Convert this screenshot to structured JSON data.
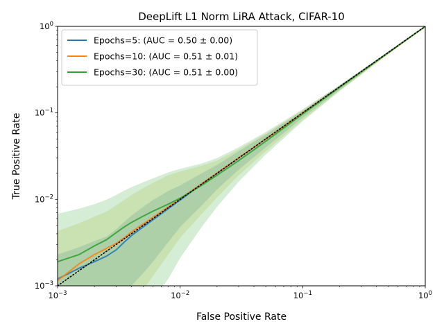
{
  "chart_data": {
    "type": "line",
    "title": "DeepLift L1 Norm LiRA Attack, CIFAR-10",
    "xlabel": "False Positive Rate",
    "ylabel": "True Positive Rate",
    "xscale": "log",
    "yscale": "log",
    "xlim": [
      0.001,
      1
    ],
    "ylim": [
      0.001,
      1
    ],
    "grid": false,
    "legend_position": "top-left",
    "x_ticks": [
      {
        "value": 0.001,
        "base": "10",
        "exp": "−3"
      },
      {
        "value": 0.01,
        "base": "10",
        "exp": "−2"
      },
      {
        "value": 0.1,
        "base": "10",
        "exp": "−1"
      },
      {
        "value": 1,
        "base": "10",
        "exp": "0"
      }
    ],
    "y_ticks": [
      {
        "value": 0.001,
        "base": "10",
        "exp": "−3"
      },
      {
        "value": 0.01,
        "base": "10",
        "exp": "−2"
      },
      {
        "value": 0.1,
        "base": "10",
        "exp": "−1"
      },
      {
        "value": 1,
        "base": "10",
        "exp": "0"
      }
    ],
    "reference_line": {
      "style": "dotted",
      "color": "#000000",
      "x": [
        0.001,
        1
      ],
      "y": [
        0.001,
        1
      ]
    },
    "series": [
      {
        "name": "Epochs=5: (AUC = 0.50 ± 0.00)",
        "color": "#1f77b4",
        "fill_color": "#1f77b4",
        "x": [
          0.001,
          0.0015,
          0.002,
          0.0025,
          0.003,
          0.0035,
          0.004,
          0.005,
          0.006,
          0.008,
          0.01,
          0.015,
          0.02,
          0.03,
          0.05,
          0.1,
          0.2,
          0.5,
          1
        ],
        "y": [
          0.0012,
          0.0016,
          0.0019,
          0.0022,
          0.0026,
          0.0032,
          0.0038,
          0.0048,
          0.0058,
          0.0078,
          0.0098,
          0.015,
          0.02,
          0.03,
          0.05,
          0.1,
          0.2,
          0.5,
          1
        ],
        "lower": [
          0.0004,
          0.0005,
          0.0006,
          0.0007,
          0.0008,
          0.0009,
          0.001,
          0.0014,
          0.0019,
          0.0032,
          0.0048,
          0.0085,
          0.013,
          0.022,
          0.04,
          0.088,
          0.185,
          0.485,
          1
        ],
        "upper": [
          0.0023,
          0.0028,
          0.0033,
          0.0037,
          0.0045,
          0.0055,
          0.0065,
          0.0082,
          0.0098,
          0.0125,
          0.0145,
          0.02,
          0.025,
          0.036,
          0.056,
          0.105,
          0.205,
          0.505,
          1
        ]
      },
      {
        "name": "Epochs=10: (AUC = 0.51 ± 0.01)",
        "color": "#ff7f0e",
        "fill_color": "#bcbd22",
        "x": [
          0.001,
          0.0015,
          0.002,
          0.0025,
          0.003,
          0.0035,
          0.004,
          0.005,
          0.006,
          0.008,
          0.01,
          0.015,
          0.02,
          0.03,
          0.05,
          0.1,
          0.2,
          0.5,
          1
        ],
        "y": [
          0.00115,
          0.0018,
          0.0023,
          0.0027,
          0.0031,
          0.0036,
          0.0042,
          0.0052,
          0.0062,
          0.0082,
          0.0102,
          0.0152,
          0.0202,
          0.0302,
          0.05,
          0.1,
          0.198,
          0.495,
          1
        ],
        "lower": [
          0.0002,
          0.0002,
          0.0002,
          0.0003,
          0.0004,
          0.0005,
          0.0006,
          0.0009,
          0.0013,
          0.0023,
          0.0036,
          0.0068,
          0.0105,
          0.019,
          0.036,
          0.083,
          0.18,
          0.48,
          1
        ],
        "upper": [
          0.0043,
          0.0053,
          0.0063,
          0.0072,
          0.0085,
          0.0098,
          0.0112,
          0.0135,
          0.0155,
          0.019,
          0.021,
          0.0245,
          0.028,
          0.038,
          0.058,
          0.108,
          0.208,
          0.508,
          1
        ]
      },
      {
        "name": "Epochs=30: (AUC = 0.51 ± 0.00)",
        "color": "#2ca02c",
        "fill_color": "#2ca02c",
        "x": [
          0.001,
          0.0015,
          0.002,
          0.0025,
          0.003,
          0.0035,
          0.004,
          0.005,
          0.006,
          0.008,
          0.01,
          0.015,
          0.02,
          0.03,
          0.05,
          0.1,
          0.2,
          0.5,
          1
        ],
        "y": [
          0.0019,
          0.0023,
          0.0029,
          0.0034,
          0.0041,
          0.0048,
          0.0054,
          0.0064,
          0.0073,
          0.0088,
          0.0103,
          0.0145,
          0.019,
          0.028,
          0.047,
          0.097,
          0.197,
          0.497,
          1
        ],
        "lower": [
          0.0002,
          0.0002,
          0.0002,
          0.0002,
          0.0002,
          0.0002,
          0.0003,
          0.0005,
          0.0007,
          0.0012,
          0.0021,
          0.0048,
          0.0082,
          0.016,
          0.033,
          0.08,
          0.178,
          0.478,
          1
        ],
        "upper": [
          0.0068,
          0.0078,
          0.0088,
          0.0099,
          0.0112,
          0.0126,
          0.0138,
          0.0158,
          0.0175,
          0.0205,
          0.0225,
          0.026,
          0.03,
          0.04,
          0.06,
          0.11,
          0.21,
          0.51,
          1
        ]
      }
    ]
  }
}
